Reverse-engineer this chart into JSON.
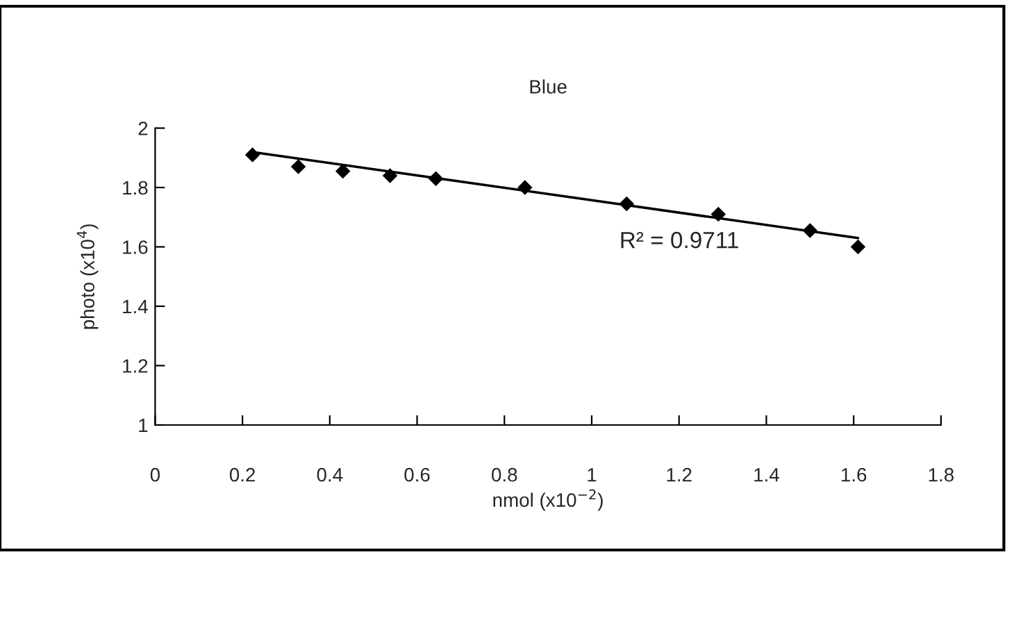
{
  "chart_data": {
    "type": "scatter",
    "title": "Blue",
    "xlabel": "nmol (x10$^{−2}$)",
    "ylabel": "photo (x10$^{4}$)",
    "x": [
      0.223,
      0.328,
      0.43,
      0.538,
      0.643,
      0.847,
      1.08,
      1.29,
      1.5,
      1.61
    ],
    "series": [
      {
        "color": "#000000",
        "values": [
          1.91,
          1.87,
          1.855,
          1.84,
          1.83,
          1.8,
          1.745,
          1.71,
          1.655,
          1.6
        ],
        "marker": "diamond"
      },
      {
        "type": "line",
        "color": "#000000",
        "x": [
          0.22,
          1.61
        ],
        "values": [
          1.92,
          1.63
        ],
        "marker": "none",
        "line_style": "solid"
      }
    ],
    "annotations": [
      "R² = 0.9711"
    ],
    "xlim": [
      0,
      1.8
    ],
    "ylim": [
      1,
      2
    ],
    "xticks": [
      0,
      0.2,
      0.4,
      0.6,
      0.8,
      1,
      1.2,
      1.4,
      1.6,
      1.8
    ],
    "yticks": [
      1,
      1.2,
      1.4,
      1.6,
      1.8,
      2
    ],
    "grid": false,
    "legend": false
  }
}
